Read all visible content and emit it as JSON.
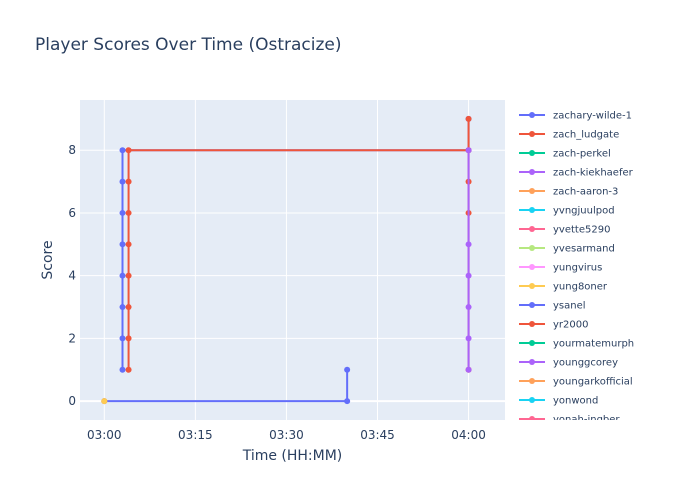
{
  "chart_data": {
    "type": "line",
    "title": "Player Scores Over Time (Ostracize)",
    "xlabel": "Time (HH:MM)",
    "ylabel": "Score",
    "xlim": [
      "02:56",
      "04:06"
    ],
    "ylim": [
      -0.6,
      9.6
    ],
    "x_ticks": [
      "03:00",
      "03:15",
      "03:30",
      "03:45",
      "04:00"
    ],
    "y_ticks": [
      0,
      2,
      4,
      6,
      8
    ],
    "grid": true,
    "legend_position": "right",
    "plot_background": "#e5ecf6",
    "series": [
      {
        "name": "zachary-wilde-1",
        "color": "#636efa",
        "points": [
          {
            "x": "03:00",
            "y": 0
          },
          {
            "x": "03:40",
            "y": 0
          },
          {
            "x": "03:40",
            "y": 1
          }
        ]
      },
      {
        "name": "zach_ludgate",
        "color": "#EF553B",
        "points": []
      },
      {
        "name": "zach-perkel",
        "color": "#00cc96",
        "points": []
      },
      {
        "name": "zach-kiekhaefer",
        "color": "#ab63fa",
        "points": []
      },
      {
        "name": "zach-aaron-3",
        "color": "#FFA15A",
        "points": [
          {
            "x": "03:00",
            "y": 0
          }
        ]
      },
      {
        "name": "yvngjuulpod",
        "color": "#19d3f3",
        "points": []
      },
      {
        "name": "yvette5290",
        "color": "#FF6692",
        "points": []
      },
      {
        "name": "yvesarmand",
        "color": "#B6E880",
        "points": []
      },
      {
        "name": "yungvirus",
        "color": "#FF97FF",
        "points": []
      },
      {
        "name": "yung8oner",
        "color": "#FECB52",
        "points": [
          {
            "x": "03:00",
            "y": 0
          }
        ]
      },
      {
        "name": "ysanel",
        "color": "#636efa",
        "points": [
          {
            "x": "03:03",
            "y": 1
          },
          {
            "x": "03:03",
            "y": 2
          },
          {
            "x": "03:03",
            "y": 3
          },
          {
            "x": "03:03",
            "y": 4
          },
          {
            "x": "03:03",
            "y": 5
          },
          {
            "x": "03:03",
            "y": 6
          },
          {
            "x": "03:03",
            "y": 7
          },
          {
            "x": "03:03",
            "y": 8
          },
          {
            "x": "04:00",
            "y": 8
          },
          {
            "x": "04:00",
            "y": 9
          }
        ]
      },
      {
        "name": "yr2000",
        "color": "#EF553B",
        "points": [
          {
            "x": "03:04",
            "y": 1
          },
          {
            "x": "03:04",
            "y": 2
          },
          {
            "x": "03:04",
            "y": 3
          },
          {
            "x": "03:04",
            "y": 4
          },
          {
            "x": "03:04",
            "y": 5
          },
          {
            "x": "03:04",
            "y": 6
          },
          {
            "x": "03:04",
            "y": 7
          },
          {
            "x": "03:04",
            "y": 8
          },
          {
            "x": "04:00",
            "y": 8
          },
          {
            "x": "04:00",
            "y": 1
          },
          {
            "x": "04:00",
            "y": 7
          },
          {
            "x": "04:00",
            "y": 6
          },
          {
            "x": "04:00",
            "y": 9
          }
        ]
      },
      {
        "name": "yourmatemurph",
        "color": "#00cc96",
        "points": []
      },
      {
        "name": "younggcorey",
        "color": "#ab63fa",
        "points": [
          {
            "x": "04:00",
            "y": 1
          },
          {
            "x": "04:00",
            "y": 2
          },
          {
            "x": "04:00",
            "y": 3
          },
          {
            "x": "04:00",
            "y": 4
          },
          {
            "x": "04:00",
            "y": 5
          },
          {
            "x": "04:00",
            "y": 8
          }
        ]
      },
      {
        "name": "youngarkofficial",
        "color": "#FFA15A",
        "points": []
      },
      {
        "name": "yonwond",
        "color": "#19d3f3",
        "points": []
      },
      {
        "name": "yonah-ingber",
        "color": "#FF6692",
        "points": []
      }
    ]
  }
}
